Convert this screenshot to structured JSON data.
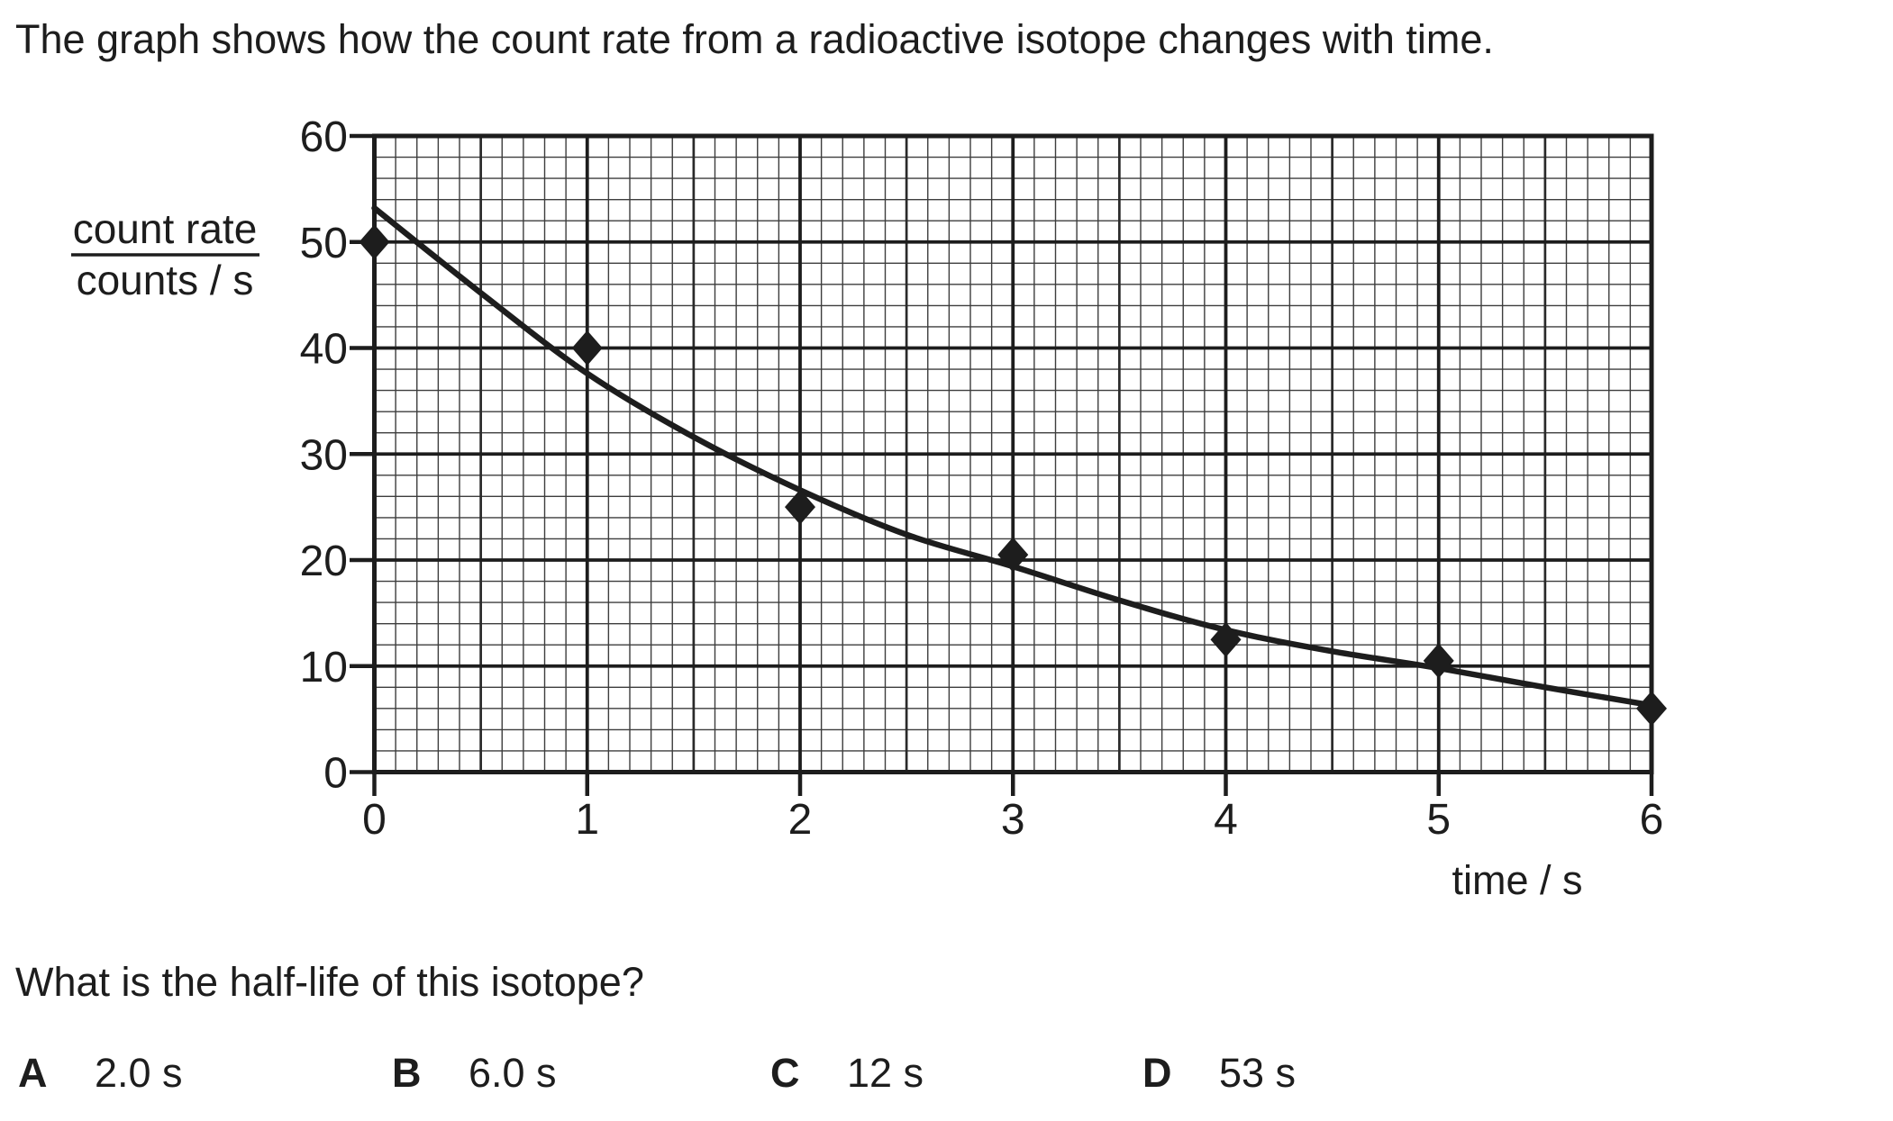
{
  "intro": "The graph shows how the count rate from a radioactive isotope changes with time.",
  "question": "What is the half-life of this isotope?",
  "options": [
    {
      "letter": "A",
      "value": "2.0 s"
    },
    {
      "letter": "B",
      "value": "6.0 s"
    },
    {
      "letter": "C",
      "value": "12 s"
    },
    {
      "letter": "D",
      "value": "53 s"
    }
  ],
  "colors": {
    "ink": "#1d1d1d",
    "grid_minor": "#3d3d3d",
    "background": "#ffffff"
  },
  "chart_data": {
    "type": "scatter",
    "title": "",
    "xlabel": "time / s",
    "ylabel_numerator": "count rate",
    "ylabel_denominator": "counts / s",
    "xlim": [
      0,
      6
    ],
    "ylim": [
      0,
      60
    ],
    "x_tick_labels": [
      "0",
      "1",
      "2",
      "3",
      "4",
      "5",
      "6"
    ],
    "y_tick_labels": [
      "0",
      "10",
      "20",
      "30",
      "40",
      "50",
      "60"
    ],
    "x_major_step": 1,
    "x_semimajor_step": 0.5,
    "x_minor_step": 0.1,
    "y_major_step": 10,
    "y_minor_step": 2,
    "grid": "fine graph-paper grid on",
    "legend": "none",
    "marker": "filled diamond",
    "points": [
      [
        0,
        50
      ],
      [
        1,
        40
      ],
      [
        2,
        25
      ],
      [
        3,
        20.5
      ],
      [
        4,
        12.5
      ],
      [
        5,
        10.5
      ],
      [
        6,
        6
      ]
    ],
    "curve": {
      "description": "smooth best-fit exponential decay, half-life about 2 s",
      "samples": [
        [
          0,
          53.2
        ],
        [
          0.5,
          45.2
        ],
        [
          1,
          37.6
        ],
        [
          1.5,
          31.6
        ],
        [
          2,
          26.6
        ],
        [
          2.5,
          22.4
        ],
        [
          3,
          19.4
        ],
        [
          3.5,
          16.2
        ],
        [
          4,
          13.4
        ],
        [
          4.5,
          11.4
        ],
        [
          5,
          9.8
        ],
        [
          5.5,
          8.0
        ],
        [
          6,
          6.3
        ]
      ]
    }
  }
}
